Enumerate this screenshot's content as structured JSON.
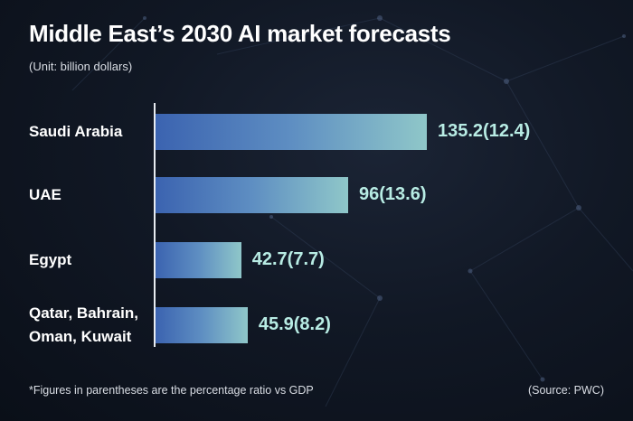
{
  "chart_data": {
    "type": "bar",
    "orientation": "horizontal",
    "title": "Middle East’s 2030 AI market forecasts",
    "subtitle": "(Unit: billion dollars)",
    "categories": [
      "Saudi Arabia",
      "UAE",
      "Egypt",
      "Qatar, Bahrain, Oman, Kuwait"
    ],
    "category_lines": [
      [
        "Saudi Arabia"
      ],
      [
        "UAE"
      ],
      [
        "Egypt"
      ],
      [
        "Qatar, Bahrain,",
        "Oman, Kuwait"
      ]
    ],
    "values": [
      135.2,
      96,
      42.7,
      45.9
    ],
    "gdp_ratio_percent": [
      12.4,
      13.6,
      7.7,
      8.2
    ],
    "data_labels": [
      "135.2(12.4)",
      "96(13.6)",
      "42.7(7.7)",
      "45.9(8.2)"
    ],
    "grid": false,
    "bar_gradient": [
      "#3b63b0",
      "#8fc7c9"
    ],
    "label_color": "#b8ece4"
  },
  "footnote": "*Figures in parentheses are the percentage ratio vs GDP",
  "source": "(Source: PWC)"
}
